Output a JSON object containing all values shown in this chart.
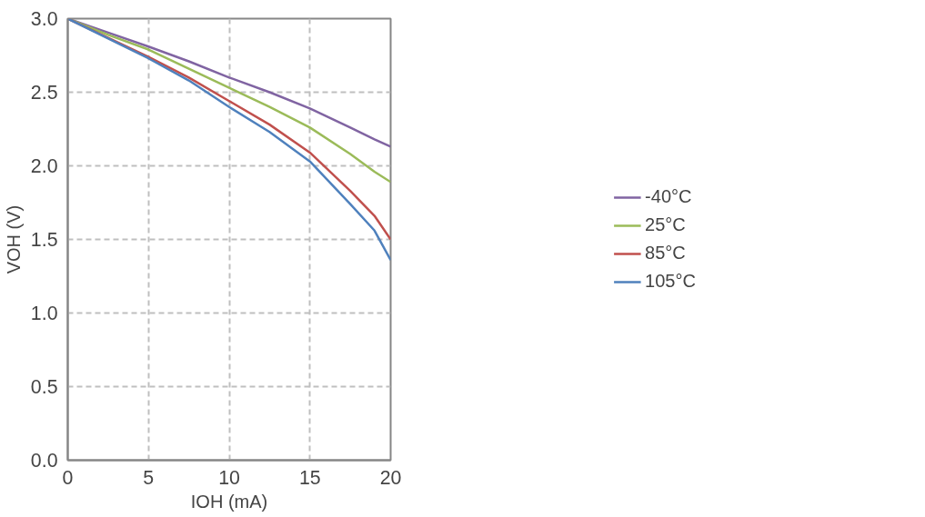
{
  "chart_data": {
    "type": "line",
    "xlabel": "IOH (mA)",
    "ylabel": "VOH (V)",
    "x": [
      0,
      2.5,
      5,
      7.5,
      10,
      12.5,
      15,
      17.5,
      19,
      20
    ],
    "series": [
      {
        "name": "-40°C",
        "color": "#8064a2",
        "values": [
          3.0,
          2.905,
          2.81,
          2.71,
          2.6,
          2.5,
          2.39,
          2.26,
          2.18,
          2.13
        ]
      },
      {
        "name": "25°C",
        "color": "#9bbb59",
        "values": [
          3.0,
          2.89,
          2.79,
          2.66,
          2.53,
          2.4,
          2.26,
          2.08,
          1.96,
          1.89
        ]
      },
      {
        "name": "85°C",
        "color": "#c0504d",
        "values": [
          3.0,
          2.87,
          2.74,
          2.6,
          2.44,
          2.28,
          2.09,
          1.83,
          1.66,
          1.5
        ]
      },
      {
        "name": "105°C",
        "color": "#4f81bd",
        "values": [
          3.0,
          2.865,
          2.73,
          2.58,
          2.4,
          2.23,
          2.03,
          1.74,
          1.56,
          1.36
        ]
      }
    ],
    "xlim": [
      0,
      20
    ],
    "ylim": [
      0,
      3.0
    ],
    "xticks": [
      0,
      5,
      10,
      15,
      20
    ],
    "yticks": [
      {
        "value": 0,
        "label": "0.0"
      },
      {
        "value": 0.5,
        "label": "0.5"
      },
      {
        "value": 1,
        "label": "1.0"
      },
      {
        "value": 1.5,
        "label": "1.5"
      },
      {
        "value": 2,
        "label": "2.0"
      },
      {
        "value": 2.5,
        "label": "2.5"
      },
      {
        "value": 3,
        "label": "3.0"
      }
    ],
    "grid": true,
    "legend": "right",
    "marker": "none",
    "line_style": "solid"
  }
}
